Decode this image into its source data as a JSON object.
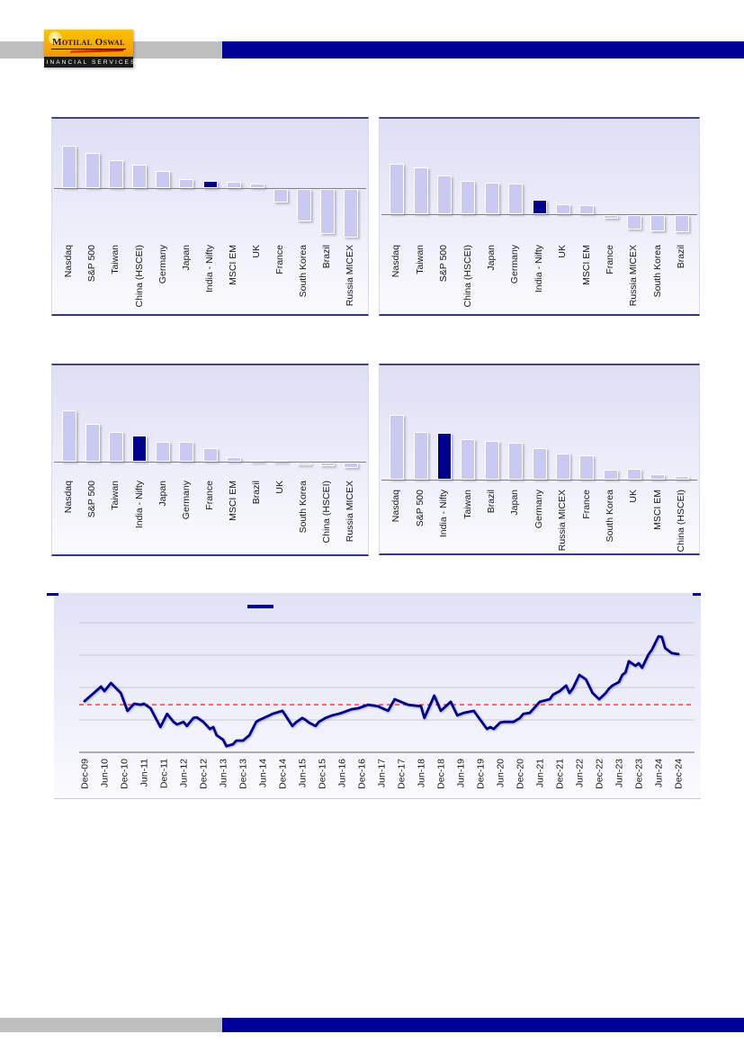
{
  "header": {
    "logo_line1": "Motilal Oswal",
    "logo_line2": "FINANCIAL SERVICES"
  },
  "colors": {
    "navy_bar": "#000099",
    "gray_bar": "#BFBFBF",
    "bar_fill": "#C9C9F2",
    "bar_highlight": "#00008B",
    "line": "#00008B",
    "average_line": "#FF0000",
    "gridline": "#C9C9C9",
    "axis": "#808080",
    "logo_orange": "#F7A600"
  },
  "chart_data": [
    {
      "id": "top_left",
      "type": "bar",
      "title": "",
      "categories": [
        "Nasdaq",
        "S&P 500",
        "Taiwan",
        "China (HSCEI)",
        "Germany",
        "Japan",
        "India - Nifty",
        "MSCI EM",
        "UK",
        "France",
        "South Korea",
        "Brazil",
        "Russia MICEX"
      ],
      "values": [
        47,
        39,
        31,
        26,
        19,
        10,
        8,
        7,
        5,
        -15,
        -36,
        -50,
        -54
      ],
      "highlight": "India - Nifty",
      "ylim": [
        -55,
        77
      ],
      "y_axis_labels": "none (values estimated from bar heights, relative units)",
      "grid": false
    },
    {
      "id": "top_right",
      "type": "bar",
      "title": "",
      "categories": [
        "Nasdaq",
        "Taiwan",
        "S&P 500",
        "China (HSCEI)",
        "Japan",
        "Germany",
        "India - Nifty",
        "UK",
        "MSCI EM",
        "France",
        "Russia MICEX",
        "South Korea",
        "Brazil"
      ],
      "values": [
        56,
        52,
        43,
        37,
        35,
        34,
        16,
        11,
        10,
        -4,
        -16,
        -18,
        -19
      ],
      "highlight": "India - Nifty",
      "ylim": [
        -26,
        106
      ],
      "y_axis_labels": "none (values estimated from bar heights, relative units)",
      "grid": false
    },
    {
      "id": "mid_left",
      "type": "bar",
      "title": "",
      "categories": [
        "Nasdaq",
        "S&P 500",
        "Taiwan",
        "India - Nifty",
        "Japan",
        "Germany",
        "France",
        "MSCI EM",
        "Brazil",
        "UK",
        "South Korea",
        "China (HSCEI)",
        "Russia MICEX"
      ],
      "values": [
        57,
        42,
        33,
        29,
        22,
        22,
        15,
        5,
        1,
        0.5,
        -3,
        -4,
        -6
      ],
      "highlight": "India - Nifty",
      "ylim": [
        -13,
        107
      ],
      "y_axis_labels": "none (values estimated from bar heights, relative units)",
      "grid": false
    },
    {
      "id": "mid_right",
      "type": "bar",
      "title": "",
      "categories": [
        "Nasdaq",
        "S&P 500",
        "India - Nifty",
        "Taiwan",
        "Brazil",
        "Japan",
        "Germany",
        "Russia MICEX",
        "France",
        "South Korea",
        "UK",
        "MSCI EM",
        "China (HSCEI)"
      ],
      "values": [
        72,
        53,
        52,
        45,
        43,
        41,
        35,
        29,
        27,
        11,
        12,
        6,
        4
      ],
      "highlight": "India - Nifty",
      "ylim": [
        -3,
        127
      ],
      "y_axis_labels": "none (values estimated from bar heights, relative units)",
      "grid": false
    },
    {
      "id": "bottom",
      "type": "line",
      "title": "",
      "x_tick_labels": [
        "Dec-09",
        "Jun-10",
        "Dec-10",
        "Jun-11",
        "Dec-11",
        "Jun-12",
        "Dec-12",
        "Jun-13",
        "Dec-13",
        "Jun-14",
        "Dec-14",
        "Jun-15",
        "Dec-15",
        "Jun-16",
        "Dec-16",
        "Jun-17",
        "Dec-17",
        "Jun-18",
        "Dec-18",
        "Jun-19",
        "Dec-19",
        "Jun-20",
        "Dec-20",
        "Jun-21",
        "Dec-21",
        "Jun-22",
        "Dec-22",
        "Jun-23",
        "Dec-23",
        "Jun-24",
        "Dec-24"
      ],
      "x_unit": "months since Dec-09",
      "y_axis_labels": "none (values in gridline units estimated from plot, axis = 0, each gridline = 1)",
      "ylim": [
        0,
        5
      ],
      "gridlines_y": [
        1,
        2,
        3,
        4
      ],
      "average_line_y": 1.47,
      "legend": {
        "marker": "line-dash",
        "label": ""
      },
      "points": [
        [
          0,
          1.58
        ],
        [
          3,
          1.85
        ],
        [
          5,
          2.03
        ],
        [
          6,
          1.89
        ],
        [
          8,
          2.14
        ],
        [
          11,
          1.83
        ],
        [
          13,
          1.28
        ],
        [
          15,
          1.5
        ],
        [
          17,
          1.47
        ],
        [
          18,
          1.5
        ],
        [
          20,
          1.36
        ],
        [
          23,
          0.78
        ],
        [
          25,
          1.19
        ],
        [
          27,
          0.94
        ],
        [
          28,
          0.86
        ],
        [
          30,
          0.94
        ],
        [
          31,
          0.81
        ],
        [
          33,
          1.06
        ],
        [
          34,
          1.08
        ],
        [
          36,
          0.94
        ],
        [
          38,
          0.72
        ],
        [
          39,
          0.78
        ],
        [
          40,
          0.53
        ],
        [
          42,
          0.39
        ],
        [
          43,
          0.19
        ],
        [
          45,
          0.25
        ],
        [
          46,
          0.36
        ],
        [
          48,
          0.36
        ],
        [
          50,
          0.53
        ],
        [
          52,
          0.94
        ],
        [
          53,
          1.0
        ],
        [
          56,
          1.14
        ],
        [
          57,
          1.19
        ],
        [
          60,
          1.28
        ],
        [
          63,
          0.81
        ],
        [
          64,
          0.92
        ],
        [
          66,
          1.06
        ],
        [
          67,
          1.0
        ],
        [
          68,
          0.92
        ],
        [
          70,
          0.81
        ],
        [
          71,
          0.94
        ],
        [
          73,
          1.06
        ],
        [
          75,
          1.14
        ],
        [
          77,
          1.19
        ],
        [
          78,
          1.22
        ],
        [
          81,
          1.33
        ],
        [
          83,
          1.36
        ],
        [
          86,
          1.47
        ],
        [
          89,
          1.42
        ],
        [
          92,
          1.28
        ],
        [
          94,
          1.64
        ],
        [
          98,
          1.47
        ],
        [
          102,
          1.42
        ],
        [
          103,
          1.06
        ],
        [
          106,
          1.75
        ],
        [
          108,
          1.28
        ],
        [
          111,
          1.56
        ],
        [
          113,
          1.14
        ],
        [
          115,
          1.22
        ],
        [
          118,
          1.28
        ],
        [
          119,
          1.14
        ],
        [
          122,
          0.72
        ],
        [
          123,
          0.78
        ],
        [
          124,
          0.72
        ],
        [
          126,
          0.92
        ],
        [
          127,
          0.94
        ],
        [
          130,
          0.94
        ],
        [
          132,
          1.06
        ],
        [
          133,
          1.19
        ],
        [
          135,
          1.22
        ],
        [
          138,
          1.56
        ],
        [
          141,
          1.64
        ],
        [
          142,
          1.78
        ],
        [
          144,
          1.89
        ],
        [
          146,
          2.06
        ],
        [
          147,
          1.83
        ],
        [
          148,
          1.97
        ],
        [
          150,
          2.39
        ],
        [
          152,
          2.25
        ],
        [
          154,
          1.83
        ],
        [
          156,
          1.64
        ],
        [
          158,
          1.83
        ],
        [
          159,
          1.97
        ],
        [
          160,
          2.06
        ],
        [
          162,
          2.17
        ],
        [
          163,
          2.39
        ],
        [
          164,
          2.47
        ],
        [
          165,
          2.81
        ],
        [
          167,
          2.67
        ],
        [
          168,
          2.75
        ],
        [
          169,
          2.61
        ],
        [
          171,
          3.03
        ],
        [
          172,
          3.17
        ],
        [
          174,
          3.58
        ],
        [
          175,
          3.56
        ],
        [
          176,
          3.22
        ],
        [
          178,
          3.06
        ],
        [
          180,
          3.03
        ]
      ]
    }
  ]
}
